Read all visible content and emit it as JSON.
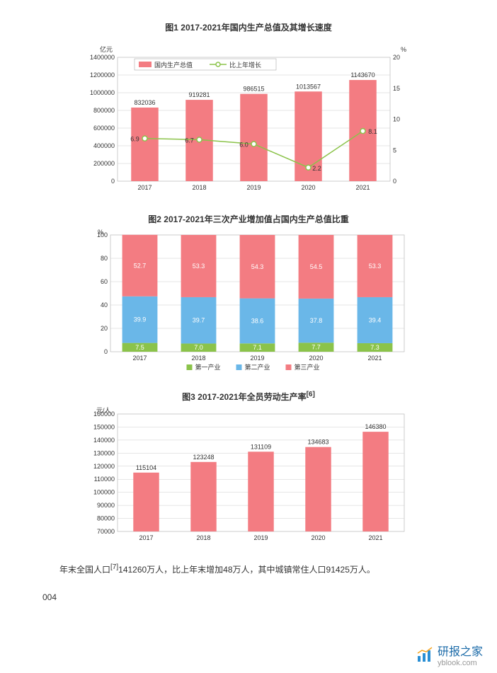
{
  "chart1": {
    "type": "bar+line",
    "title": "图1    2017-2021年国内生产总值及其增长速度",
    "left_axis_label": "亿元",
    "right_axis_label": "%",
    "categories": [
      "2017",
      "2018",
      "2019",
      "2020",
      "2021"
    ],
    "bar_values": [
      832036,
      919281,
      986515,
      1013567,
      1143670
    ],
    "line_values": [
      6.9,
      6.7,
      6.0,
      2.2,
      8.1
    ],
    "bar_color": "#f37c82",
    "line_color": "#8bc34a",
    "line_marker_fill": "#ffffff",
    "legend": {
      "bar": "国内生产总值",
      "line": "比上年增长"
    },
    "left_ticks": [
      0,
      200000,
      400000,
      600000,
      800000,
      1000000,
      1200000,
      1400000
    ],
    "right_ticks": [
      0,
      5,
      10,
      15,
      20
    ],
    "background_color": "#ffffff",
    "grid_color": "#cccccc",
    "border_color": "#999999"
  },
  "chart2": {
    "type": "stacked_bar",
    "title": "图2  2017-2021年三次产业增加值占国内生产总值比重",
    "left_axis_label": "%",
    "categories": [
      "2017",
      "2018",
      "2019",
      "2020",
      "2021"
    ],
    "series": [
      {
        "name": "第一产业",
        "color": "#8bc34a",
        "values": [
          7.5,
          7.0,
          7.1,
          7.7,
          7.3
        ]
      },
      {
        "name": "第二产业",
        "color": "#6ab7e8",
        "values": [
          39.9,
          39.7,
          38.6,
          37.8,
          39.4
        ]
      },
      {
        "name": "第三产业",
        "color": "#f37c82",
        "values": [
          52.7,
          53.3,
          54.3,
          54.5,
          53.3
        ]
      }
    ],
    "left_ticks": [
      0,
      20,
      40,
      60,
      80,
      100
    ],
    "grid_color": "#cccccc",
    "border_color": "#999999"
  },
  "chart3": {
    "type": "bar",
    "title": "图3    2017-2021年全员劳动生产率",
    "title_sup": "[6]",
    "left_axis_label": "元/人",
    "categories": [
      "2017",
      "2018",
      "2019",
      "2020",
      "2021"
    ],
    "values": [
      115104,
      123248,
      131109,
      134683,
      146380
    ],
    "bar_color": "#f37c82",
    "left_ticks": [
      70000,
      80000,
      90000,
      100000,
      110000,
      120000,
      130000,
      140000,
      150000,
      160000
    ],
    "grid_color": "#cccccc",
    "border_color": "#999999"
  },
  "body_text": "年末全国人口",
  "body_sup": "[7]",
  "body_text_cont": "141260万人，比上年末增加48万人，其中城镇常住人口91425万人。",
  "page_number": "004",
  "footer": {
    "brand": "研报之家",
    "url": "yblook.com"
  }
}
